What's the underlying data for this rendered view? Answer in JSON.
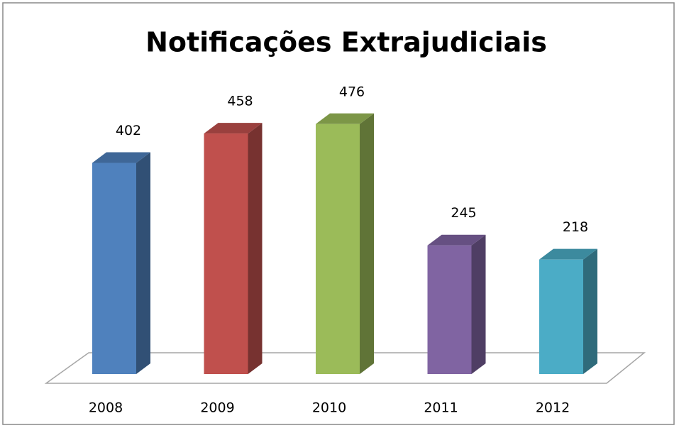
{
  "chart_data": {
    "type": "bar3d",
    "title": "Notificações Extrajudiciais",
    "categories": [
      "2008",
      "2009",
      "2010",
      "2011",
      "2012"
    ],
    "values": [
      402,
      458,
      476,
      245,
      218
    ],
    "colors": [
      "#4f81bd",
      "#c0504d",
      "#9bbb59",
      "#8064a2",
      "#4bacc6"
    ]
  }
}
